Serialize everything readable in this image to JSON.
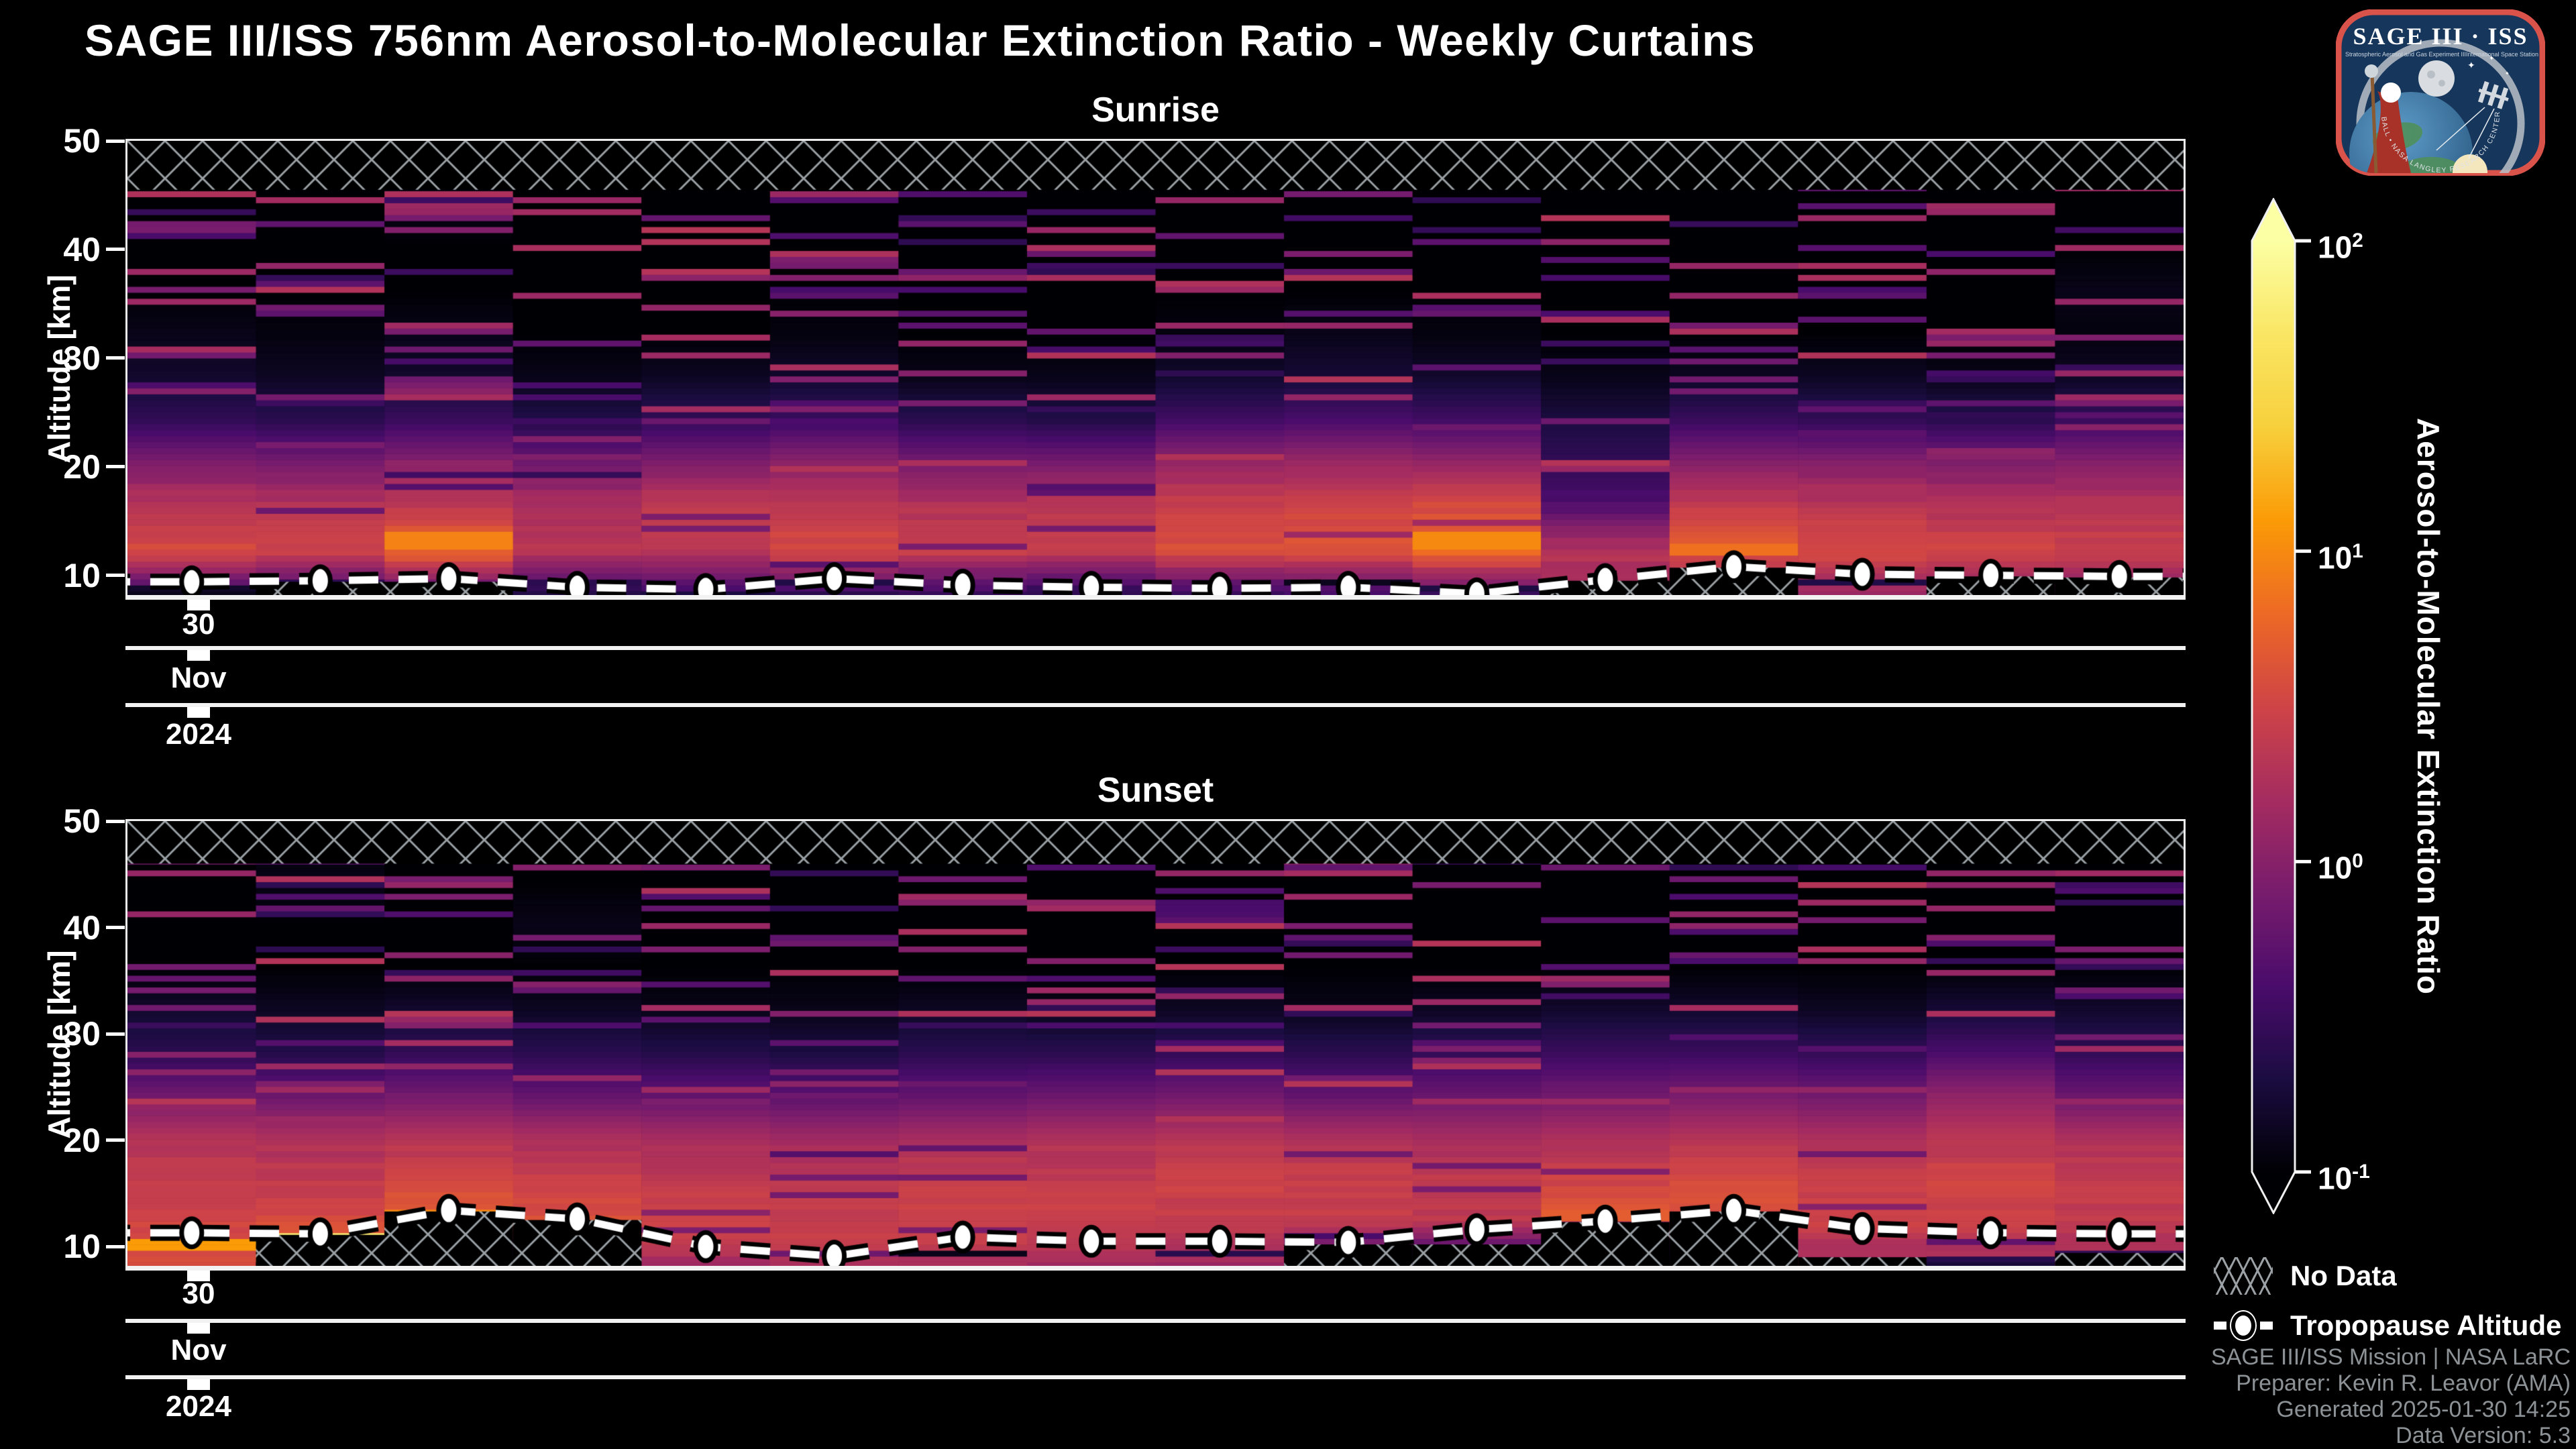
{
  "chart_data": {
    "type": "heatmap",
    "title": "SAGE III/ISS 756nm Aerosol-to-Molecular Extinction Ratio - Weekly Curtains",
    "x_axis_date": {
      "day": "30",
      "month": "Nov",
      "year": "2024"
    },
    "panels": [
      {
        "title": "Sunrise",
        "y_axis_label": "Altitude [km]",
        "y_ticks": [
          "50",
          "40",
          "30",
          "20",
          "10"
        ],
        "ylim_km": [
          8,
          50
        ],
        "x_axis": {
          "day": "30",
          "month": "Nov",
          "year": "2024"
        },
        "columns": 16,
        "no_data_top_km": [
          45.5,
          50
        ],
        "tropopause_km": [
          9.4,
          9.5,
          9.7,
          8.9,
          8.7,
          9.7,
          9.1,
          8.9,
          8.8,
          8.9,
          8.3,
          9.6,
          10.8,
          10.1,
          10.0,
          9.9
        ],
        "alt_grid_km": [
          8,
          12,
          16,
          20,
          24,
          28,
          32,
          36,
          40,
          44,
          48
        ],
        "profiles_log10": [
          [
            -0.5,
            0.55,
            0.35,
            -0.05,
            -0.55,
            -0.8,
            -0.9,
            -1,
            -1,
            -1,
            -1
          ],
          [
            -0.55,
            0.5,
            0.3,
            -0.1,
            -0.6,
            -0.85,
            -0.95,
            -1,
            -1,
            -1,
            -1
          ],
          [
            -0.4,
            0.8,
            0.4,
            0,
            -0.5,
            -0.8,
            -0.9,
            -1,
            -1,
            -0.9,
            -1
          ],
          [
            -0.6,
            0.35,
            0.25,
            -0.15,
            -0.65,
            -0.9,
            -1,
            -1,
            -1,
            -1,
            -1
          ],
          [
            -0.45,
            0.3,
            0.45,
            -0.05,
            -0.55,
            -0.85,
            -1,
            -1,
            -1,
            -1,
            -1
          ],
          [
            -0.5,
            0.55,
            0.4,
            0.05,
            -0.5,
            -0.8,
            -0.95,
            -1,
            -1,
            -1,
            -1
          ],
          [
            -0.55,
            0.45,
            0.3,
            -0.1,
            -0.6,
            -0.9,
            -1,
            -1,
            -1,
            -1,
            -1
          ],
          [
            -0.6,
            0.4,
            0.35,
            -0.1,
            -0.65,
            -0.9,
            -1,
            -1,
            -1,
            -1,
            -1
          ],
          [
            -0.5,
            0.6,
            0.45,
            0.1,
            -0.45,
            -0.8,
            -0.95,
            -1,
            -1,
            -1,
            -1
          ],
          [
            -0.45,
            0.65,
            0.5,
            0.15,
            -0.4,
            -0.75,
            -0.9,
            -1,
            -1,
            -1,
            -1
          ],
          [
            -0.4,
            0.85,
            0.55,
            0.1,
            -0.45,
            -0.8,
            -0.95,
            -1,
            -1,
            -1,
            -1
          ],
          [
            0.2,
            0.3,
            -0.35,
            -0.55,
            -0.7,
            -0.9,
            -1,
            -1,
            -1,
            -1,
            -1
          ],
          [
            -0.3,
            0.7,
            0.4,
            0,
            -0.5,
            -0.85,
            -1,
            -1,
            -1,
            -1,
            -1
          ],
          [
            0.1,
            0.55,
            0.35,
            0,
            -0.55,
            -0.85,
            -1,
            -1,
            -1,
            -1,
            -1
          ],
          [
            0,
            0.5,
            0.3,
            -0.05,
            -0.6,
            -0.9,
            -1,
            -1,
            -1,
            -1,
            -1
          ],
          [
            -0.05,
            0.45,
            0.35,
            0,
            -0.5,
            -0.85,
            -0.95,
            -0.9,
            -1,
            -1,
            -1
          ]
        ],
        "hot_spots": [
          {
            "col": 3,
            "alt_km": 13,
            "log10": 0.95,
            "half_km": 0.7
          },
          {
            "col": 11,
            "alt_km": 13,
            "log10": 1.0,
            "half_km": 0.8
          },
          {
            "col": 13,
            "alt_km": 12,
            "log10": 0.85,
            "half_km": 0.6
          }
        ],
        "no_data_patches": [
          {
            "col_from": 2,
            "col_to": 3,
            "top_km": 9.4
          },
          {
            "col_from": 12,
            "col_to": 13,
            "top_km": 11
          },
          {
            "col_from": 15,
            "col_to": 16,
            "top_km": 9.9
          }
        ]
      },
      {
        "title": "Sunset",
        "y_axis_label": "Altitude [km]",
        "y_ticks": [
          "50",
          "40",
          "30",
          "20",
          "10"
        ],
        "ylim_km": [
          8,
          50
        ],
        "x_axis": {
          "day": "30",
          "month": "Nov",
          "year": "2024"
        },
        "columns": 16,
        "no_data_top_km": [
          46,
          50
        ],
        "tropopause_km": [
          11.3,
          11.2,
          13.4,
          12.6,
          10.0,
          9.1,
          10.9,
          10.5,
          10.5,
          10.4,
          11.6,
          12.4,
          13.4,
          11.7,
          11.3,
          11.2
        ],
        "alt_grid_km": [
          8,
          12,
          16,
          20,
          24,
          28,
          32,
          36,
          40,
          44,
          48
        ],
        "profiles_log10": [
          [
            0.6,
            0.5,
            0.4,
            0.3,
            -0.15,
            -0.6,
            -0.8,
            -1,
            -1,
            -1,
            -1
          ],
          [
            1.0,
            0.55,
            0.4,
            0.25,
            -0.2,
            -0.65,
            -0.85,
            -1,
            -1,
            -0.9,
            -1
          ],
          [
            -1,
            0.75,
            0.5,
            0.3,
            -0.15,
            -0.55,
            -0.8,
            -1,
            -1,
            -1,
            -1
          ],
          [
            -1,
            0.6,
            0.45,
            0.25,
            -0.25,
            -0.6,
            -0.85,
            -1,
            -0.9,
            -1,
            -1
          ],
          [
            0.2,
            0.5,
            0.4,
            0.2,
            -0.25,
            -0.65,
            -0.9,
            -1,
            -1,
            -1,
            -1
          ],
          [
            0.3,
            0.45,
            0.35,
            0.15,
            -0.3,
            -0.7,
            -0.9,
            -1,
            -1,
            -1,
            -1
          ],
          [
            0.25,
            0.5,
            0.4,
            0.2,
            -0.25,
            -0.6,
            -0.85,
            -1,
            -1,
            -1,
            -1
          ],
          [
            0.2,
            0.45,
            0.4,
            0.25,
            -0.2,
            -0.6,
            -0.9,
            -1,
            -1,
            -1,
            -1
          ],
          [
            0.15,
            0.4,
            0.5,
            0.3,
            -0.15,
            -0.55,
            -0.85,
            -1,
            -1,
            -1,
            -1
          ],
          [
            -0.6,
            0.4,
            0.45,
            0.25,
            -0.25,
            -0.6,
            -0.9,
            -1,
            -1,
            -1,
            -1
          ],
          [
            -0.7,
            0.35,
            0.4,
            0.2,
            -0.2,
            -0.55,
            -0.85,
            -1,
            -1,
            -1,
            -1
          ],
          [
            -1,
            0.65,
            0.5,
            0.25,
            -0.15,
            -0.5,
            -0.8,
            -1,
            -1,
            -1,
            -1
          ],
          [
            -1,
            0.6,
            0.55,
            0.3,
            -0.1,
            -0.5,
            -0.8,
            -1,
            -1,
            -1,
            -1
          ],
          [
            0.1,
            0.5,
            0.45,
            0.25,
            -0.15,
            -0.55,
            -0.85,
            -1,
            -1,
            -1,
            -1
          ],
          [
            0.15,
            0.45,
            0.5,
            0.35,
            0.05,
            -0.4,
            -0.75,
            -1,
            -1,
            -1,
            -1
          ],
          [
            0.1,
            0.4,
            0.4,
            0.25,
            -0.2,
            -0.55,
            -0.8,
            -1,
            -1,
            -1,
            -1
          ]
        ],
        "hot_spots": [
          {
            "col": 1,
            "alt_km": 10,
            "log10": 1.1,
            "half_km": 0.6
          },
          {
            "col": 2,
            "alt_km": 10.6,
            "log10": 1.75,
            "half_km": 0.5
          },
          {
            "col": 3,
            "alt_km": 12.8,
            "log10": 1.0,
            "half_km": 0.4
          },
          {
            "col": 12,
            "alt_km": 12.6,
            "log10": 0.7,
            "half_km": 0.6
          }
        ],
        "no_data_patches": [
          {
            "col_from": 2,
            "col_to": 4,
            "top_km": 13.3
          },
          {
            "col_from": 10,
            "col_to": 11,
            "top_km": 10.2
          },
          {
            "col_from": 12,
            "col_to": 13,
            "top_km": 13.3
          },
          {
            "col_from": 14,
            "col_to": 14,
            "top_km": 9
          },
          {
            "col_from": 16,
            "col_to": 16,
            "top_km": 9.4
          }
        ]
      }
    ],
    "colorbar": {
      "label": "Aerosol-to-Molecular Extinction Ratio",
      "scale": "log",
      "range_log10": [
        -1,
        2
      ],
      "ticks": [
        {
          "m": "10",
          "e": "2"
        },
        {
          "m": "10",
          "e": "1"
        },
        {
          "m": "10",
          "e": "0"
        },
        {
          "m": "10",
          "e": "-1"
        }
      ],
      "colormap": "inferno",
      "stops": [
        [
          0,
          "#000004"
        ],
        [
          0.1,
          "#1b0c41"
        ],
        [
          0.2,
          "#4a0c6b"
        ],
        [
          0.3,
          "#781c6d"
        ],
        [
          0.4,
          "#a52c60"
        ],
        [
          0.5,
          "#cf4446"
        ],
        [
          0.6,
          "#ed6925"
        ],
        [
          0.7,
          "#fb9b06"
        ],
        [
          0.8,
          "#f7d03c"
        ],
        [
          0.9,
          "#fae664"
        ],
        [
          1,
          "#fcffa4"
        ]
      ]
    },
    "legend": {
      "no_data": "No Data",
      "tropopause": "Tropopause Altitude"
    },
    "texture_seed": 11
  },
  "logo": {
    "title": "SAGE III · ISS",
    "subtitle_left": "Stratospheric Aerosol and Gas Experiment III",
    "subtitle_right": "International Space Station",
    "ring_text": "BALL • NASA LANGLEY RESEARCH CENTER • ESA"
  },
  "attribution": [
    "SAGE III/ISS Mission | NASA LaRC",
    "Preparer: Kevin R. Leavor (AMA)",
    "Generated 2025-01-30 14:25",
    "Data Version: 5.3"
  ]
}
